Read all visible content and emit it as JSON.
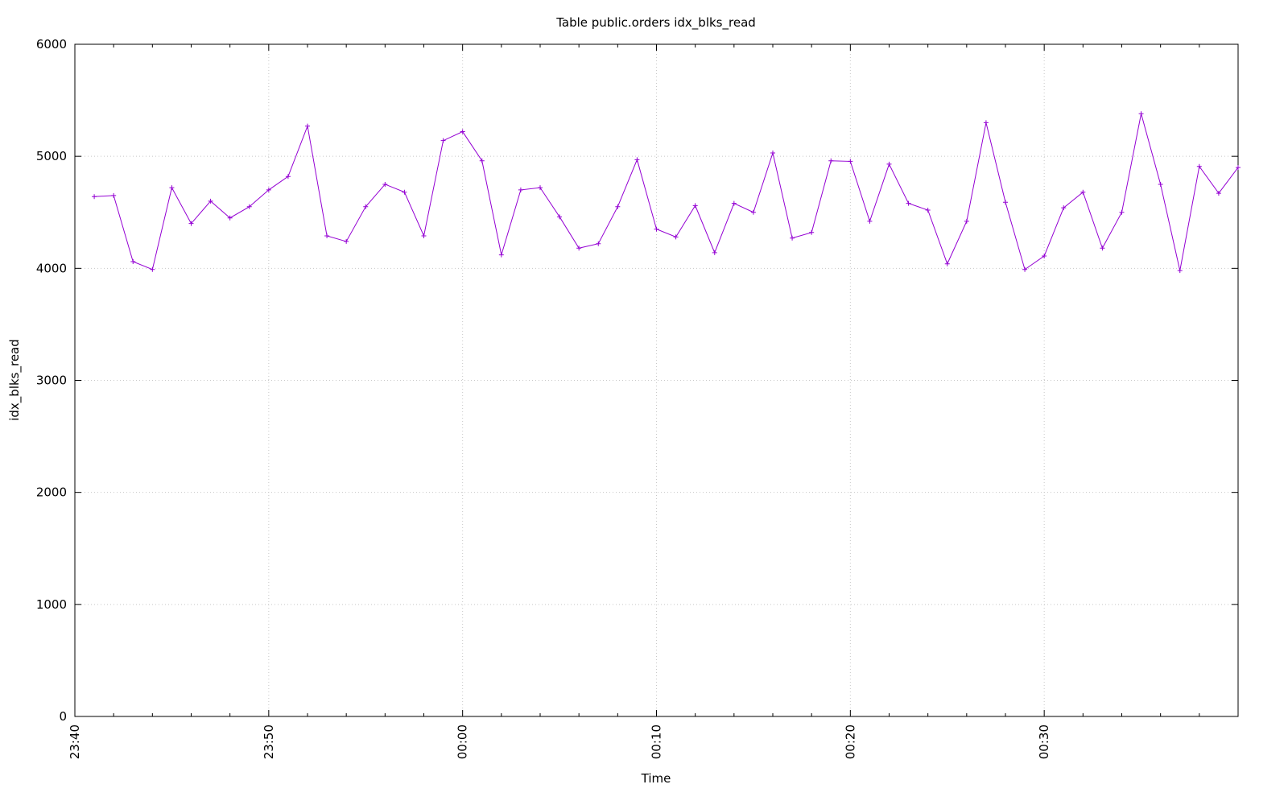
{
  "chart_data": {
    "type": "line",
    "title": "Table public.orders idx_blks_read",
    "x_label": "Time",
    "y_label": "idx_blks_read",
    "x": [
      "23:41",
      "23:42",
      "23:43",
      "23:44",
      "23:45",
      "23:46",
      "23:47",
      "23:48",
      "23:49",
      "23:50",
      "23:51",
      "23:52",
      "23:53",
      "23:54",
      "23:55",
      "23:56",
      "23:57",
      "23:58",
      "23:59",
      "00:00",
      "00:01",
      "00:02",
      "00:03",
      "00:04",
      "00:05",
      "00:06",
      "00:07",
      "00:08",
      "00:09",
      "00:10",
      "00:11",
      "00:12",
      "00:13",
      "00:14",
      "00:15",
      "00:16",
      "00:17",
      "00:18",
      "00:19",
      "00:20",
      "00:21",
      "00:22",
      "00:23",
      "00:24",
      "00:25",
      "00:26",
      "00:27",
      "00:28",
      "00:29",
      "00:30",
      "00:31",
      "00:32",
      "00:33",
      "00:34",
      "00:35",
      "00:36",
      "00:37",
      "00:38",
      "00:39",
      "00:40"
    ],
    "series": [
      {
        "color": "#9400d3",
        "marker": "+",
        "values": [
          4640,
          4650,
          4060,
          3990,
          4720,
          4400,
          4600,
          4450,
          4550,
          4700,
          4820,
          5270,
          4290,
          4240,
          4550,
          4750,
          4680,
          4290,
          5140,
          5220,
          4960,
          4120,
          4700,
          4720,
          4460,
          4180,
          4220,
          4550,
          4970,
          4350,
          4280,
          4560,
          4140,
          4580,
          4500,
          5030,
          4270,
          4320,
          4960,
          4955,
          4420,
          4930,
          4580,
          4520,
          4040,
          4420,
          5300,
          4590,
          3990,
          4110,
          4540,
          4680,
          4180,
          4500,
          5380,
          4750,
          3980,
          4910,
          4670,
          4900
        ]
      }
    ],
    "xlim": [
      "23:40",
      "00:40"
    ],
    "xticks": [
      "23:40",
      "23:50",
      "00:00",
      "00:10",
      "00:20",
      "00:30"
    ],
    "ylim": [
      0,
      6000
    ],
    "yticks": [
      0,
      1000,
      2000,
      3000,
      4000,
      5000,
      6000
    ],
    "grid": true
  }
}
